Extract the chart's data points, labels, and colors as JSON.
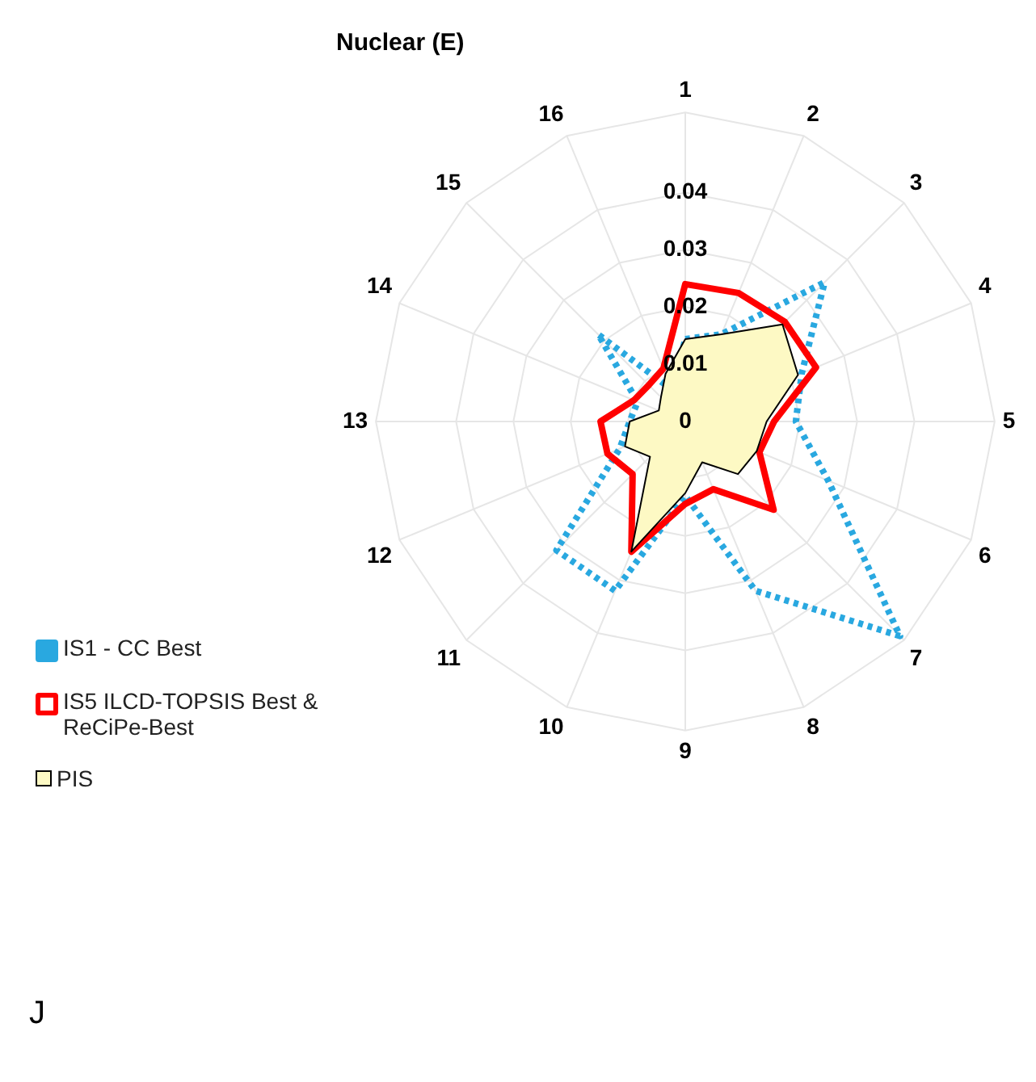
{
  "chart_data": {
    "type": "radar",
    "title": "Nuclear (E)",
    "categories": [
      "1",
      "2",
      "3",
      "4",
      "5",
      "6",
      "7",
      "8",
      "9",
      "10",
      "11",
      "12",
      "13",
      "14",
      "15",
      "16"
    ],
    "series": [
      {
        "name": "IS1 - CC Best",
        "color": "#29a8e0",
        "line_style": "dotted",
        "values": [
          0.0144,
          0.0165,
          0.0344,
          0.022,
          0.0193,
          0.027,
          0.053,
          0.032,
          0.013,
          0.032,
          0.0318,
          0.0124,
          0.0097,
          0.009,
          0.0215,
          0.006
        ]
      },
      {
        "name": "IS5 ILCD-TOPSIS Best & ReCiPe-Best",
        "color": "#ff0000",
        "line_style": "solid",
        "values": [
          0.024,
          0.0243,
          0.0246,
          0.0247,
          0.0155,
          0.014,
          0.0218,
          0.0128,
          0.0144,
          0.0246,
          0.013,
          0.0147,
          0.0148,
          0.0097,
          0.009,
          0.01
        ]
      },
      {
        "name": "PIS",
        "type": "area",
        "color": "#fdf9c4",
        "values": [
          0.0144,
          0.0165,
          0.024,
          0.0213,
          0.0142,
          0.0135,
          0.013,
          0.0077,
          0.0125,
          0.0246,
          0.0087,
          0.0114,
          0.0097,
          0.005,
          0.006,
          0.009
        ]
      }
    ],
    "ylim": [
      0,
      0.054
    ],
    "yticks": [
      0,
      0.01,
      0.02,
      0.03,
      0.04
    ],
    "grid": true,
    "marker": "none",
    "legend": "left",
    "annotations": [
      "J"
    ]
  }
}
